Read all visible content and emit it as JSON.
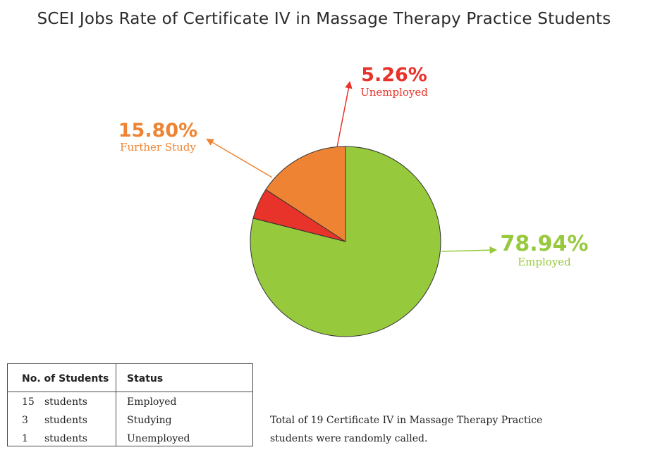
{
  "chart_data": {
    "type": "pie",
    "title": "SCEI Jobs Rate of Certificate IV in Massage Therapy Practice Students",
    "slices": [
      {
        "label": "Employed",
        "value": 78.94,
        "value_text": "78.94%",
        "color": "#97c93d"
      },
      {
        "label": "Unemployed",
        "value": 5.26,
        "value_text": "5.26%",
        "color": "#e8332a"
      },
      {
        "label": "Further Study",
        "value": 15.8,
        "value_text": "15.80%",
        "color": "#ee8433"
      }
    ]
  },
  "table": {
    "headers": {
      "count": "No. of Students",
      "status": "Status"
    },
    "rows": [
      {
        "count": "15",
        "unit": "students",
        "status": "Employed"
      },
      {
        "count": "3",
        "unit": "students",
        "status": "Studying"
      },
      {
        "count": "1",
        "unit": "students",
        "status": "Unemployed"
      }
    ]
  },
  "note": {
    "line1": "Total of 19 Certificate IV in Massage Therapy Practice",
    "line2": "students were randomly called."
  }
}
